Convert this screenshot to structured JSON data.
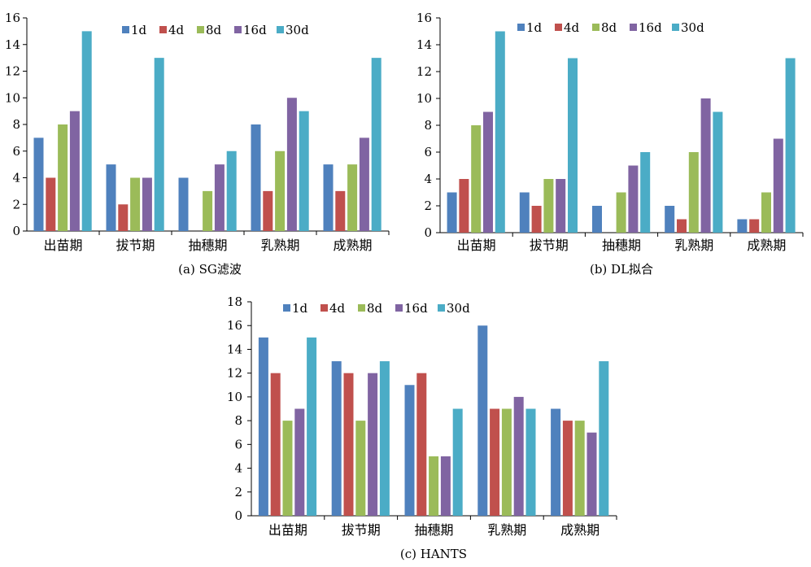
{
  "chart_data": [
    {
      "type": "bar",
      "caption": "(a) SG滤波",
      "categories": [
        "出苗期",
        "拔节期",
        "抽穗期",
        "乳熟期",
        "成熟期"
      ],
      "series": [
        {
          "name": "1d",
          "values": [
            7,
            5,
            4,
            8,
            5
          ]
        },
        {
          "name": "4d",
          "values": [
            4,
            2,
            0,
            3,
            3
          ]
        },
        {
          "name": "8d",
          "values": [
            8,
            4,
            3,
            6,
            5
          ]
        },
        {
          "name": "16d",
          "values": [
            9,
            4,
            5,
            10,
            7
          ]
        },
        {
          "name": "30d",
          "values": [
            15,
            13,
            6,
            9,
            13
          ]
        }
      ],
      "yticks": [
        0,
        2,
        4,
        6,
        8,
        10,
        12,
        14,
        16
      ],
      "ylim": [
        0,
        16
      ],
      "grid": false,
      "legend": "top-center"
    },
    {
      "type": "bar",
      "caption": "(b) DL拟合",
      "categories": [
        "出苗期",
        "拔节期",
        "抽穗期",
        "乳熟期",
        "成熟期"
      ],
      "series": [
        {
          "name": "1d",
          "values": [
            3,
            3,
            2,
            2,
            1
          ]
        },
        {
          "name": "4d",
          "values": [
            4,
            2,
            0,
            1,
            1
          ]
        },
        {
          "name": "8d",
          "values": [
            8,
            4,
            3,
            6,
            3
          ]
        },
        {
          "name": "16d",
          "values": [
            9,
            4,
            5,
            10,
            7
          ]
        },
        {
          "name": "30d",
          "values": [
            15,
            13,
            6,
            9,
            13
          ]
        }
      ],
      "yticks": [
        0,
        2,
        4,
        6,
        8,
        10,
        12,
        14,
        16
      ],
      "ylim": [
        0,
        16
      ],
      "grid": false,
      "legend": "top-center"
    },
    {
      "type": "bar",
      "caption": "(c) HANTS",
      "categories": [
        "出苗期",
        "拔节期",
        "抽穗期",
        "乳熟期",
        "成熟期"
      ],
      "series": [
        {
          "name": "1d",
          "values": [
            15,
            13,
            11,
            16,
            9
          ]
        },
        {
          "name": "4d",
          "values": [
            12,
            12,
            12,
            9,
            8
          ]
        },
        {
          "name": "8d",
          "values": [
            8,
            8,
            5,
            9,
            8
          ]
        },
        {
          "name": "16d",
          "values": [
            9,
            12,
            5,
            10,
            7
          ]
        },
        {
          "name": "30d",
          "values": [
            15,
            13,
            9,
            9,
            13
          ]
        }
      ],
      "yticks": [
        0,
        2,
        4,
        6,
        8,
        10,
        12,
        14,
        16,
        18
      ],
      "ylim": [
        0,
        18
      ],
      "grid": false,
      "legend": "top-center"
    }
  ],
  "colors": [
    "#4f81bd",
    "#c0504d",
    "#9bbb59",
    "#8064a2",
    "#4bacc6"
  ]
}
